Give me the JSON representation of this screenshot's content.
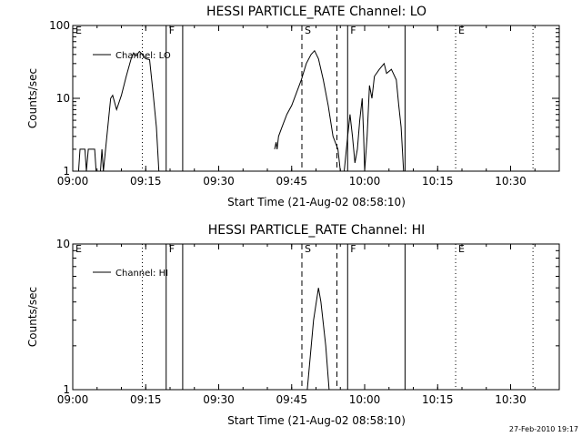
{
  "footer_date": "27-Feb-2010 19:17",
  "chart_data": [
    {
      "type": "line",
      "title": "HESSI PARTICLE_RATE Channel: LO",
      "xlabel": "Start Time (21-Aug-02 08:58:10)",
      "ylabel": "Counts/sec",
      "yscale": "log",
      "ylim": [
        1,
        100
      ],
      "ytick_labels": [
        "1",
        "10",
        "100"
      ],
      "xlim": [
        "09:00",
        "10:40"
      ],
      "xtick_labels": [
        "09:00",
        "09:15",
        "09:30",
        "09:45",
        "10:00",
        "10:15",
        "10:30"
      ],
      "legend": {
        "entry": "Channel: LO",
        "position": "top-left"
      },
      "annotations": [
        {
          "label": "E",
          "time": "08:58",
          "line": "none"
        },
        {
          "label": "",
          "time": "09:14.3",
          "line": "dotted"
        },
        {
          "label": "F",
          "time": "09:19.2",
          "line": "solid"
        },
        {
          "label": "",
          "time": "09:22.6",
          "line": "solid"
        },
        {
          "label": "S",
          "time": "09:47.1",
          "line": "dashed"
        },
        {
          "label": "",
          "time": "09:54.3",
          "line": "dashed"
        },
        {
          "label": "F",
          "time": "09:56.5",
          "line": "solid"
        },
        {
          "label": "",
          "time": "10:08.3",
          "line": "solid"
        },
        {
          "label": "E",
          "time": "10:18.7",
          "line": "dotted"
        },
        {
          "label": "",
          "time": "10:34.6",
          "line": "dotted"
        }
      ],
      "series": [
        {
          "name": "Channel: LO",
          "segments": [
            [
              [
                "09:01.2",
                1
              ],
              [
                "09:01.5",
                2
              ],
              [
                "09:02.5",
                2
              ],
              [
                "09:02.8",
                1
              ],
              [
                "09:03.2",
                2
              ],
              [
                "09:04.5",
                2
              ],
              [
                "09:04.8",
                1
              ],
              [
                "09:05.7",
                1
              ],
              [
                "09:06.0",
                2
              ],
              [
                "09:06.3",
                1
              ],
              [
                "09:07.0",
                3
              ],
              [
                "09:07.8",
                10
              ],
              [
                "09:08.2",
                11
              ],
              [
                "09:09.0",
                7
              ],
              [
                "09:10.0",
                11
              ],
              [
                "09:11.0",
                20
              ],
              [
                "09:12.0",
                35
              ],
              [
                "09:12.5",
                42
              ],
              [
                "09:13.0",
                38
              ],
              [
                "09:13.7",
                44
              ],
              [
                "09:14.3",
                40
              ],
              [
                "09:15.0",
                35
              ],
              [
                "09:15.8",
                34
              ],
              [
                "09:16.5",
                12
              ],
              [
                "09:17.2",
                4
              ],
              [
                "09:17.7",
                1
              ]
            ],
            [
              [
                "09:41.5",
                2
              ],
              [
                "09:41.8",
                2.5
              ],
              [
                "09:42.0",
                2
              ],
              [
                "09:42.3",
                3
              ],
              [
                "09:43.0",
                4
              ],
              [
                "09:44.0",
                6
              ],
              [
                "09:45.0",
                8
              ],
              [
                "09:46.0",
                12
              ],
              [
                "09:47.0",
                18
              ],
              [
                "09:48.0",
                30
              ],
              [
                "09:49.0",
                40
              ],
              [
                "09:49.7",
                45
              ],
              [
                "09:50.5",
                35
              ],
              [
                "09:51.5",
                18
              ],
              [
                "09:52.5",
                8
              ],
              [
                "09:53.5",
                3
              ],
              [
                "09:54.5",
                2
              ],
              [
                "09:55.0",
                1
              ]
            ],
            [
              [
                "09:55.8",
                1
              ],
              [
                "09:56.5",
                3
              ],
              [
                "09:57.0",
                6
              ],
              [
                "09:57.5",
                3
              ],
              [
                "09:58.0",
                1.3
              ],
              [
                "09:58.5",
                2
              ],
              [
                "09:59.0",
                5
              ],
              [
                "09:59.5",
                10
              ],
              [
                "09:59.8",
                3
              ],
              [
                "10:00.0",
                1
              ],
              [
                "10:00.5",
                3
              ],
              [
                "10:01.0",
                15
              ],
              [
                "10:01.5",
                10
              ],
              [
                "10:02.0",
                20
              ],
              [
                "10:03.0",
                25
              ],
              [
                "10:04.0",
                30
              ],
              [
                "10:04.5",
                22
              ],
              [
                "10:05.5",
                25
              ],
              [
                "10:06.5",
                18
              ],
              [
                "10:07.0",
                8
              ],
              [
                "10:07.5",
                4
              ],
              [
                "10:08.0",
                1
              ]
            ]
          ]
        }
      ]
    },
    {
      "type": "line",
      "title": "HESSI PARTICLE_RATE Channel: HI",
      "xlabel": "Start Time (21-Aug-02 08:58:10)",
      "ylabel": "Counts/sec",
      "yscale": "log",
      "ylim": [
        1,
        10
      ],
      "ytick_labels": [
        "1",
        "10"
      ],
      "xlim": [
        "09:00",
        "10:40"
      ],
      "xtick_labels": [
        "09:00",
        "09:15",
        "09:30",
        "09:45",
        "10:00",
        "10:15",
        "10:30"
      ],
      "legend": {
        "entry": "Channel: HI",
        "position": "top-left"
      },
      "annotations": [
        {
          "label": "E",
          "time": "08:58",
          "line": "none"
        },
        {
          "label": "",
          "time": "09:14.3",
          "line": "dotted"
        },
        {
          "label": "F",
          "time": "09:19.2",
          "line": "solid"
        },
        {
          "label": "",
          "time": "09:22.6",
          "line": "solid"
        },
        {
          "label": "S",
          "time": "09:47.1",
          "line": "dashed"
        },
        {
          "label": "",
          "time": "09:54.3",
          "line": "dashed"
        },
        {
          "label": "F",
          "time": "09:56.5",
          "line": "solid"
        },
        {
          "label": "",
          "time": "10:08.3",
          "line": "solid"
        },
        {
          "label": "E",
          "time": "10:18.7",
          "line": "dotted"
        },
        {
          "label": "",
          "time": "10:34.6",
          "line": "dotted"
        }
      ],
      "series": [
        {
          "name": "Channel: HI",
          "segments": [
            [
              [
                "09:48.2",
                1
              ],
              [
                "09:49.5",
                3
              ],
              [
                "09:50.5",
                5
              ],
              [
                "09:51.0",
                4
              ],
              [
                "09:52.0",
                2
              ],
              [
                "09:52.7",
                1
              ]
            ]
          ]
        }
      ]
    }
  ]
}
